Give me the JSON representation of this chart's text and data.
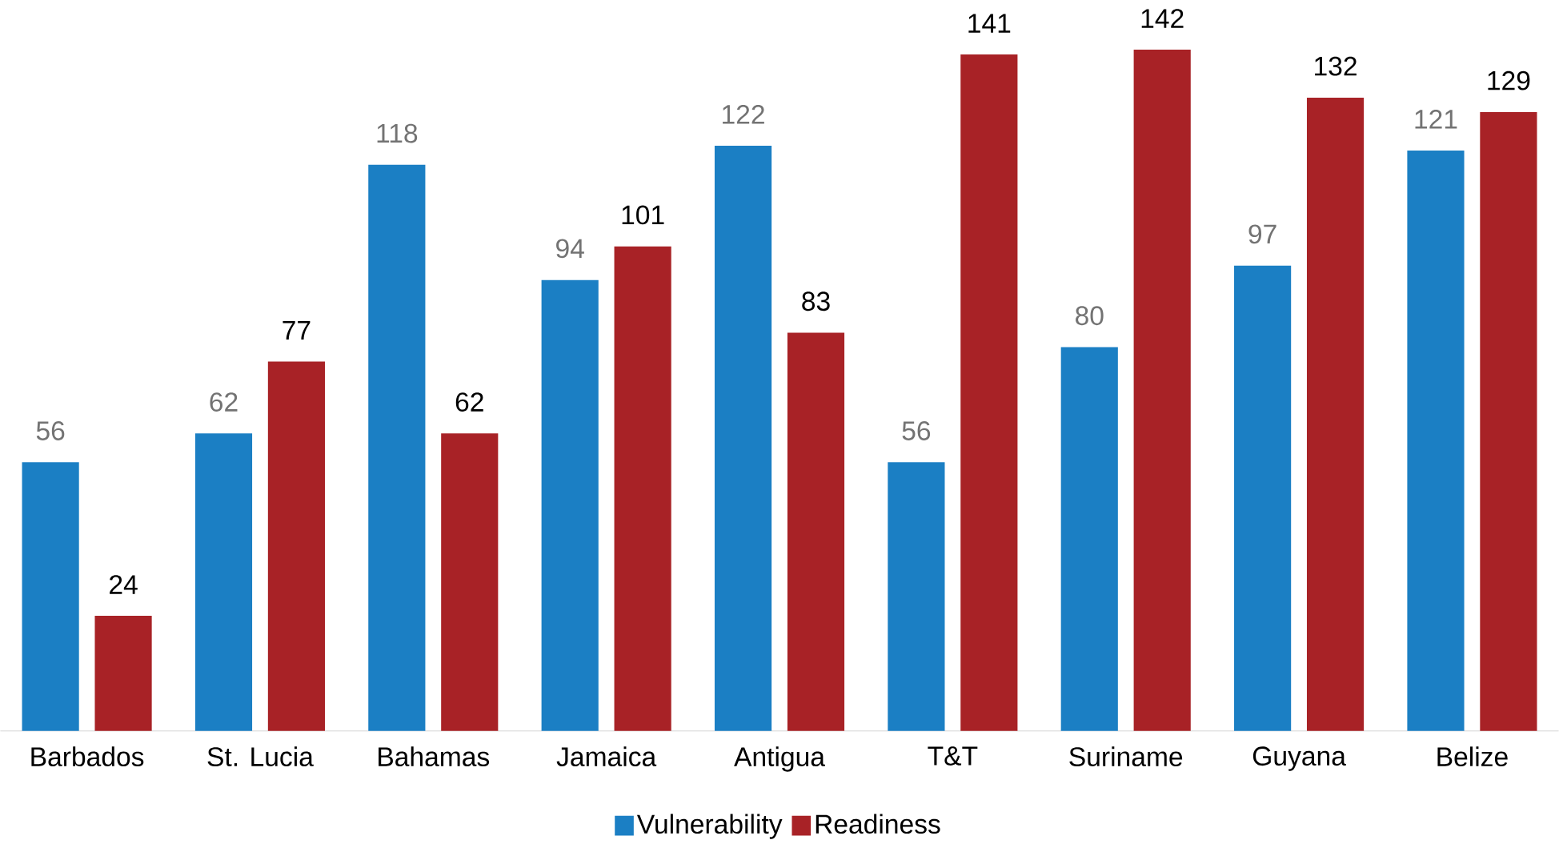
{
  "chart_data": {
    "type": "bar",
    "categories": [
      "Barbados",
      "St. Lucia",
      "Bahamas",
      "Jamaica",
      "Antigua",
      "T&T",
      "Suriname",
      "Guyana",
      "Belize"
    ],
    "series": [
      {
        "name": "Vulnerability",
        "color": "#1b7fc4",
        "values": [
          56,
          62,
          118,
          94,
          122,
          56,
          80,
          97,
          121
        ]
      },
      {
        "name": "Readiness",
        "color": "#a82226",
        "values": [
          24,
          77,
          62,
          101,
          83,
          141,
          142,
          132,
          129
        ]
      }
    ],
    "data_labels": true,
    "legend": "bottom"
  }
}
